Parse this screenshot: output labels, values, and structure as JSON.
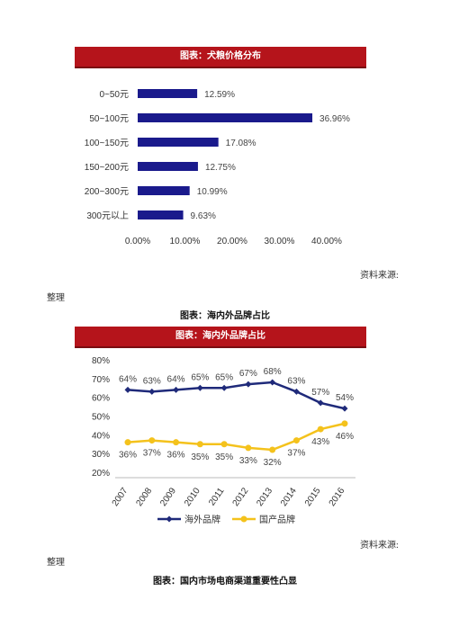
{
  "chart_data": [
    {
      "type": "bar",
      "orientation": "horizontal",
      "title": "图表：犬粮价格分布",
      "categories": [
        "0~50元",
        "50~100元",
        "100~150元",
        "150~200元",
        "200~300元",
        "300元以上"
      ],
      "values": [
        12.59,
        36.96,
        17.08,
        12.75,
        10.99,
        9.63
      ],
      "value_labels": [
        "12.59%",
        "36.96%",
        "17.08%",
        "12.75%",
        "10.99%",
        "9.63%"
      ],
      "xlim": [
        0,
        40
      ],
      "xticks": [
        "0.00%",
        "10.00%",
        "20.00%",
        "30.00%",
        "40.00%"
      ],
      "bar_color": "#1a1a8c",
      "grid": false
    },
    {
      "type": "line",
      "title": "图表：海内外品牌占比",
      "x": [
        "2007",
        "2008",
        "2009",
        "2010",
        "2011",
        "2012",
        "2013",
        "2014",
        "2015",
        "2016"
      ],
      "series": [
        {
          "name": "海外品牌",
          "values": [
            64,
            63,
            64,
            65,
            65,
            67,
            68,
            63,
            57,
            54
          ],
          "labels": [
            "64%",
            "63%",
            "64%",
            "65%",
            "65%",
            "67%",
            "68%",
            "63%",
            "57%",
            "54%"
          ],
          "color": "#1f2a7a"
        },
        {
          "name": "国产品牌",
          "values": [
            36,
            37,
            36,
            35,
            35,
            33,
            32,
            37,
            43,
            46
          ],
          "labels": [
            "36%",
            "37%",
            "36%",
            "35%",
            "35%",
            "33%",
            "32%",
            "37%",
            "43%",
            "46%"
          ],
          "color": "#f4c21c"
        }
      ],
      "ylim": [
        20,
        80
      ],
      "yticks": [
        "20%",
        "30%",
        "40%",
        "50%",
        "60%",
        "70%",
        "80%"
      ],
      "grid": false,
      "legend_position": "bottom"
    }
  ],
  "text": {
    "source1": "资料来源:",
    "note1": "整理",
    "caption1": "图表：海内外品牌占比",
    "source2": "资料来源:",
    "note2": "整理",
    "caption2": "图表：国内市场电商渠道重要性凸显"
  }
}
